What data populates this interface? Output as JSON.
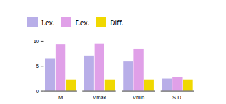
{
  "chart_data": {
    "type": "bar",
    "categories": [
      "M",
      "Vmax",
      "Vmin",
      "S.D."
    ],
    "series": [
      {
        "name": "I.ex.",
        "color": "#b8aee8",
        "values": [
          6.5,
          7.0,
          6.0,
          2.5
        ]
      },
      {
        "name": "F.ex.",
        "color": "#e0a0e8",
        "values": [
          9.3,
          9.5,
          8.5,
          2.8
        ]
      },
      {
        "name": "Diff.",
        "color": "#f0d800",
        "values": [
          2.2,
          2.2,
          2.2,
          2.2
        ]
      }
    ],
    "ylim": [
      0,
      10
    ],
    "yticks": [
      0,
      5,
      10
    ],
    "grid": false,
    "legend": "top"
  }
}
